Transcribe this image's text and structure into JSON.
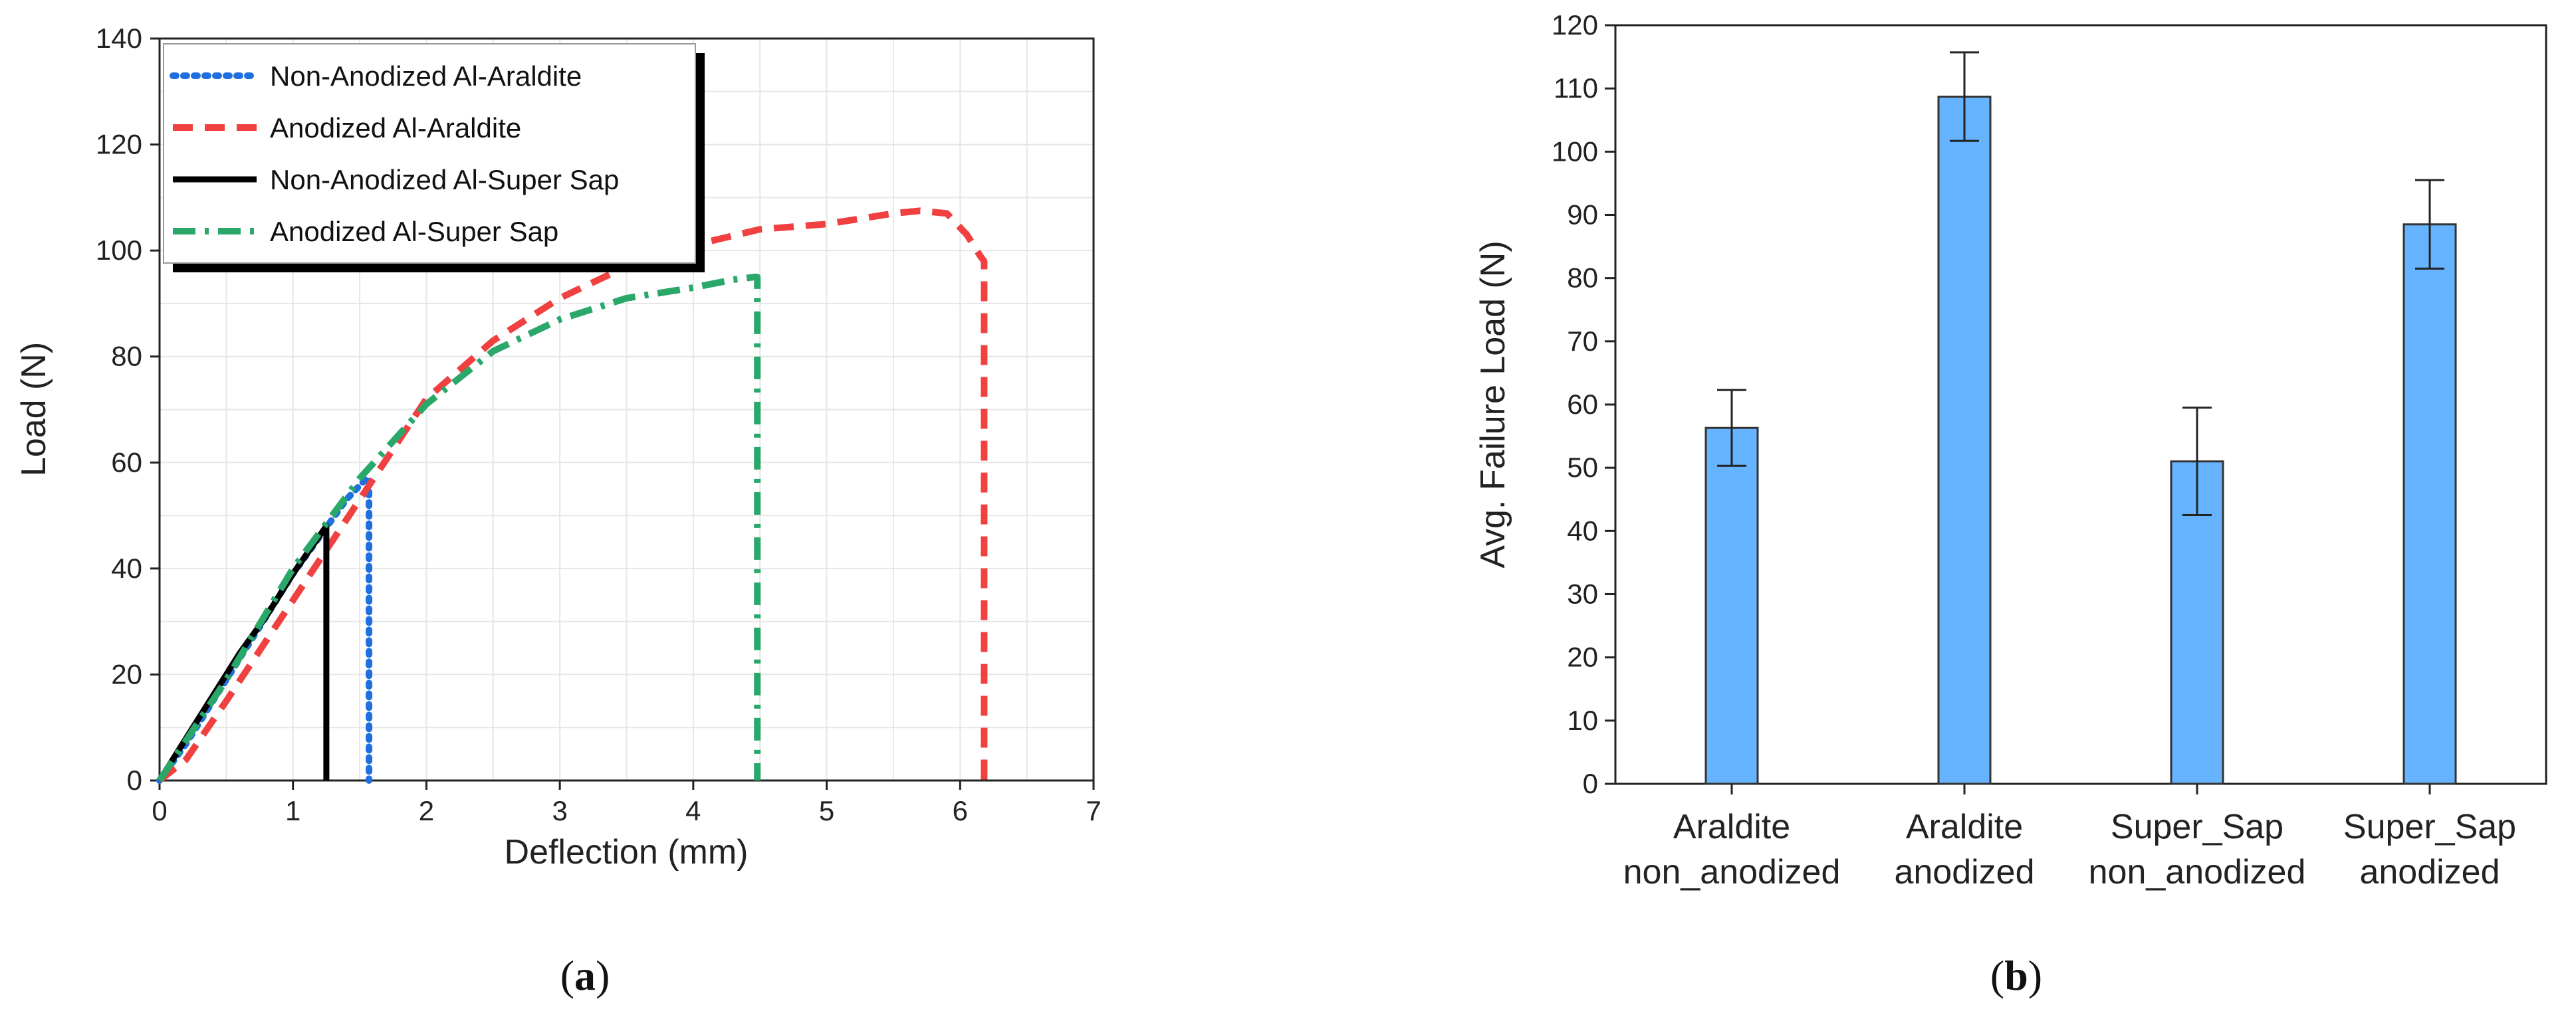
{
  "chart_data": [
    {
      "type": "line",
      "panel_label": "a",
      "xlabel": "Deflection (mm)",
      "ylabel": "Load (N)",
      "xlim": [
        0,
        7
      ],
      "ylim": [
        0,
        140
      ],
      "xticks": [
        0,
        1,
        2,
        3,
        4,
        5,
        6,
        7
      ],
      "yticks": [
        0,
        20,
        40,
        60,
        80,
        100,
        120,
        140
      ],
      "grid": true,
      "legend_position": "top-left",
      "series": [
        {
          "name": "Non-Anodized Al-Araldite",
          "color": "#1f6fe0",
          "style": "dotted",
          "x": [
            0,
            0.2,
            0.4,
            0.6,
            0.8,
            1.0,
            1.2,
            1.4,
            1.55,
            1.57,
            1.57
          ],
          "y": [
            0,
            7,
            15,
            23,
            31,
            39,
            46,
            53,
            57,
            57,
            0
          ]
        },
        {
          "name": "Anodized Al-Araldite",
          "color": "#f04040",
          "style": "dashed",
          "x": [
            0,
            0.2,
            0.5,
            1.0,
            1.5,
            2.0,
            2.5,
            3.0,
            3.5,
            4.0,
            4.5,
            5.0,
            5.5,
            5.7,
            5.9,
            6.05,
            6.15,
            6.18,
            6.18
          ],
          "y": [
            0,
            4,
            15,
            34,
            53,
            72,
            83,
            91,
            97,
            101,
            104,
            105,
            107,
            107.5,
            107,
            103,
            99,
            98,
            0
          ]
        },
        {
          "name": "Non-Anodized Al-Super Sap",
          "color": "#000000",
          "style": "solid",
          "x": [
            0,
            0.2,
            0.4,
            0.6,
            0.8,
            1.0,
            1.25,
            1.25
          ],
          "y": [
            0,
            8,
            16,
            24,
            31,
            39,
            48,
            0
          ]
        },
        {
          "name": "Anodized Al-Super Sap",
          "color": "#2aa86a",
          "style": "dashdot",
          "x": [
            0,
            0.5,
            1.0,
            1.5,
            2.0,
            2.5,
            3.0,
            3.5,
            4.0,
            4.3,
            4.46,
            4.48,
            4.48
          ],
          "y": [
            0,
            19,
            40,
            57,
            71,
            81,
            87,
            91,
            93,
            94.5,
            95,
            95,
            0
          ]
        }
      ]
    },
    {
      "type": "bar",
      "panel_label": "b",
      "xlabel": "",
      "ylabel": "Avg. Failure Load (N)",
      "ylim": [
        0,
        120
      ],
      "yticks": [
        0,
        10,
        20,
        30,
        40,
        50,
        60,
        70,
        80,
        90,
        100,
        110,
        120
      ],
      "bar_color": "#66b3ff",
      "categories": [
        [
          "Araldite",
          "non_anodized"
        ],
        [
          "Araldite",
          "anodized"
        ],
        [
          "Super_Sap",
          "non_anodized"
        ],
        [
          "Super_Sap",
          "anodized"
        ]
      ],
      "values": [
        56.3,
        108.7,
        51.0,
        88.5
      ],
      "errors": [
        6.0,
        7.0,
        8.5,
        7.0
      ]
    }
  ]
}
